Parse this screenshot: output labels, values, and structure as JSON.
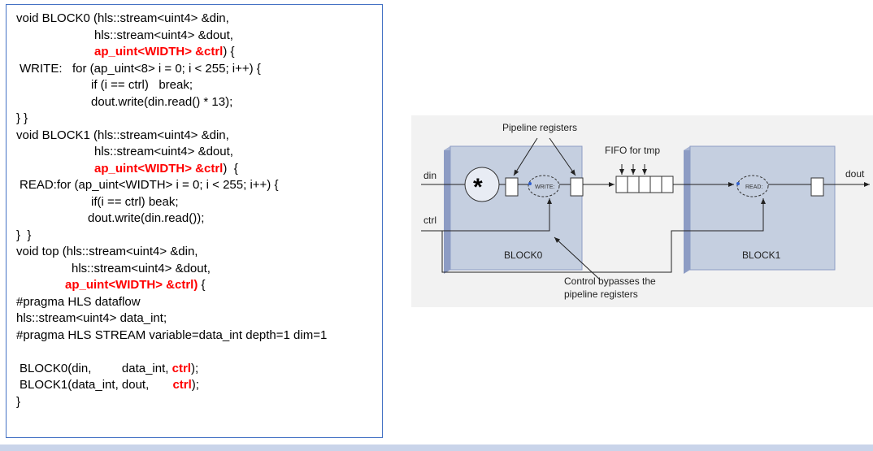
{
  "code": {
    "lines": [
      {
        "indent": 0,
        "parts": [
          {
            "t": "void BLOCK0 (hls::stream<uint4> &din,",
            "red": false
          }
        ]
      },
      {
        "indent": 96,
        "parts": [
          {
            "t": "hls::stream<uint4> &dout,",
            "red": false
          }
        ]
      },
      {
        "indent": 96,
        "parts": [
          {
            "t": "ap_uint<WIDTH> &ctrl",
            "red": true
          },
          {
            "t": ") {",
            "red": false
          }
        ]
      },
      {
        "indent": 4,
        "parts": [
          {
            "t": "WRITE:   for (ap_uint<8> i = 0; i < 255; i++) {",
            "red": false
          }
        ]
      },
      {
        "indent": 92,
        "parts": [
          {
            "t": "if (i == ctrl)   break;",
            "red": false
          }
        ]
      },
      {
        "indent": 92,
        "parts": [
          {
            "t": "dout.write(din.read() * 13);",
            "red": false
          }
        ]
      },
      {
        "indent": 0,
        "parts": [
          {
            "t": "} }",
            "red": false
          }
        ]
      },
      {
        "indent": 0,
        "parts": [
          {
            "t": "void BLOCK1 (hls::stream<uint4> &din,",
            "red": false
          }
        ]
      },
      {
        "indent": 96,
        "parts": [
          {
            "t": "hls::stream<uint4> &dout,",
            "red": false
          }
        ]
      },
      {
        "indent": 96,
        "parts": [
          {
            "t": "ap_uint<WIDTH> &ctrl",
            "red": true
          },
          {
            "t": ")  {",
            "red": false
          }
        ]
      },
      {
        "indent": 4,
        "parts": [
          {
            "t": "READ:for (ap_uint<WIDTH> i = 0; i < 255; i++) {",
            "red": false
          }
        ]
      },
      {
        "indent": 92,
        "parts": [
          {
            "t": "if(i == ctrl) beak;",
            "red": false
          }
        ]
      },
      {
        "indent": 88,
        "parts": [
          {
            "t": "dout.write(din.read());",
            "red": false
          }
        ]
      },
      {
        "indent": 0,
        "parts": [
          {
            "t": "}  }",
            "red": false
          }
        ]
      },
      {
        "indent": 0,
        "parts": [
          {
            "t": "void top (hls::stream<uint4> &din,",
            "red": false
          }
        ]
      },
      {
        "indent": 68,
        "parts": [
          {
            "t": "hls::stream<uint4> &dout,",
            "red": false
          }
        ]
      },
      {
        "indent": 60,
        "parts": [
          {
            "t": "ap_uint<WIDTH> &ctrl)",
            "red": true
          },
          {
            "t": " {",
            "red": false
          }
        ]
      },
      {
        "indent": 0,
        "parts": [
          {
            "t": "#pragma HLS dataflow",
            "red": false
          }
        ]
      },
      {
        "indent": 0,
        "parts": [
          {
            "t": "hls::stream<uint4> data_int;",
            "red": false
          }
        ]
      },
      {
        "indent": 0,
        "parts": [
          {
            "t": "#pragma HLS STREAM variable=data_int depth=1 dim=1",
            "red": false
          }
        ]
      },
      {
        "indent": 0,
        "parts": [
          {
            "t": "",
            "red": false
          }
        ]
      },
      {
        "indent": 4,
        "parts": [
          {
            "t": "BLOCK0(din,         data_int, ",
            "red": false
          },
          {
            "t": "ctrl",
            "red": true
          },
          {
            "t": ");",
            "red": false
          }
        ]
      },
      {
        "indent": 4,
        "parts": [
          {
            "t": "BLOCK1(data_int, dout,       ",
            "red": false
          },
          {
            "t": "ctrl",
            "red": true
          },
          {
            "t": ");",
            "red": false
          }
        ]
      },
      {
        "indent": 0,
        "parts": [
          {
            "t": "}",
            "red": false
          }
        ]
      }
    ]
  },
  "diagram": {
    "pipeline_label": "Pipeline registers",
    "fifo_label": "FIFO for tmp",
    "din_label": "din",
    "dout_label": "dout",
    "ctrl_label": "ctrl",
    "block0_label": "BLOCK0",
    "block1_label": "BLOCK1",
    "multiply_symbol": "*",
    "write_label": "WRITE:",
    "read_label": "READ:",
    "bypass_line1": "Control bypasses the",
    "bypass_line2": "pipeline registers"
  },
  "colors": {
    "accent_red": "#ff0000",
    "panel_border": "#4472c4",
    "block_fill": "#c5cfe0",
    "block_side": "#8d9cc4",
    "diagram_bg": "#f2f2f2"
  }
}
